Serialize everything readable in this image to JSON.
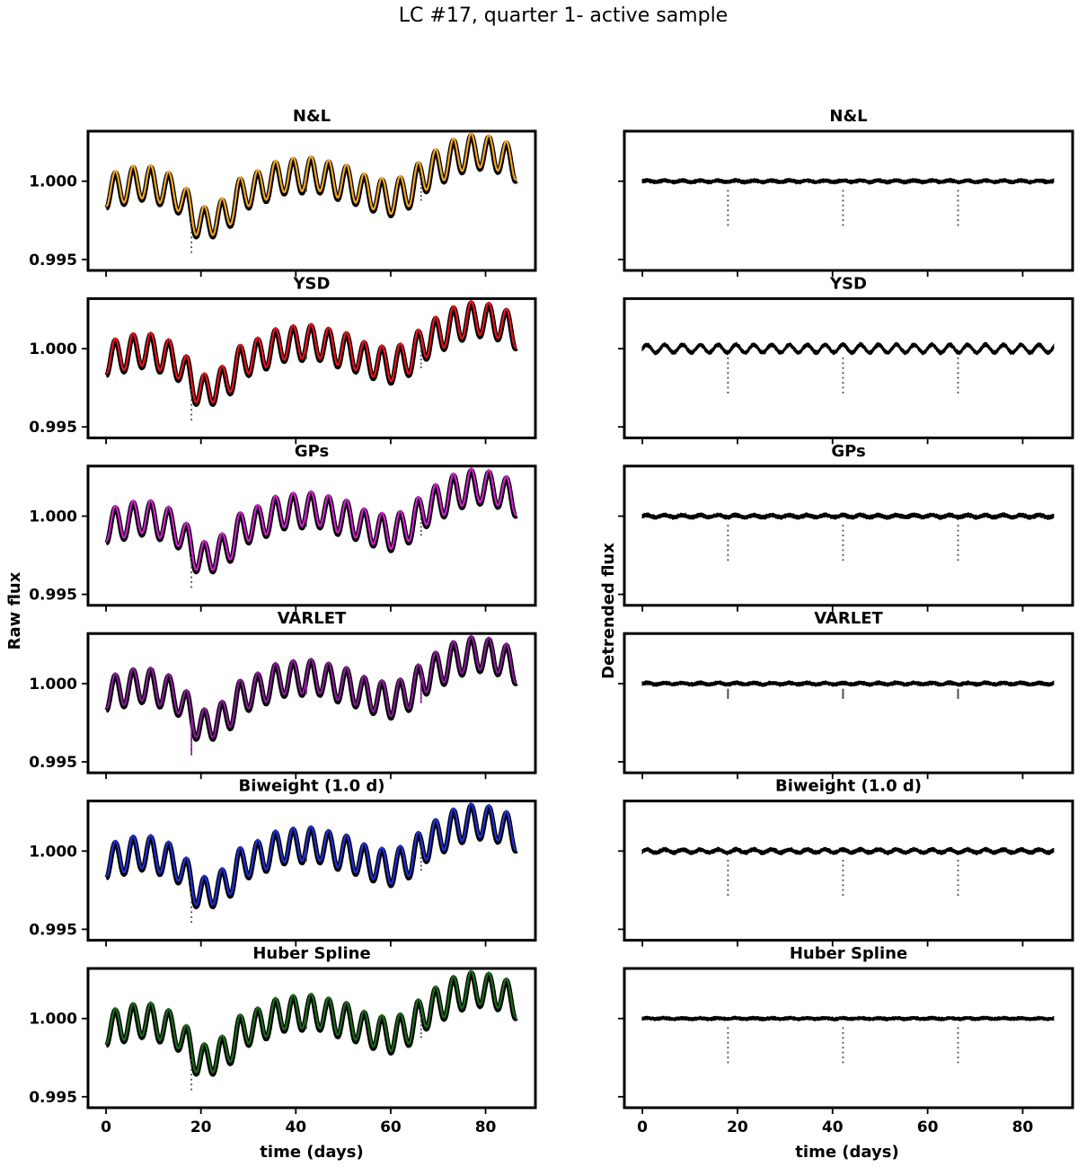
{
  "figure": {
    "suptitle": "LC #17, quarter 1- active sample",
    "left_ylabel": "Raw flux",
    "right_ylabel": "Detrended flux",
    "xlabel": "time (days)"
  },
  "chart_data": {
    "type": "line",
    "layout": "6 rows x 2 columns of panels",
    "x_ticks": [
      0,
      20,
      40,
      60,
      80
    ],
    "x_range_days": [
      0,
      86.5
    ],
    "ylim": [
      0.9943,
      1.0032
    ],
    "y_ticks": [
      1.0,
      0.995
    ],
    "y_tick_labels": [
      "1.000",
      "0.995"
    ],
    "transit_times": [
      18.0,
      42.2,
      66.4
    ],
    "raw_flux_model": {
      "oscillation_period_days": 3.75,
      "amplitude": 0.0011,
      "trend_anchor_days": [
        0,
        8,
        14,
        17,
        20,
        24,
        30,
        38,
        44,
        50,
        56,
        60,
        64,
        67,
        70,
        74,
        78,
        82,
        86.5
      ],
      "trend_anchor_flux": [
        0.9995,
        1.0,
        0.9995,
        0.9985,
        0.9973,
        0.9978,
        0.9995,
        1.0004,
        1.0005,
        1.0,
        0.9993,
        0.999,
        0.9995,
        1.0005,
        1.001,
        1.0017,
        1.002,
        1.0018,
        1.0012
      ],
      "transit_depths": [
        0.0025,
        0.001,
        0.002
      ]
    },
    "panels": [
      {
        "title": "N&L",
        "model_color": "#f5a623",
        "detrended": {
          "ripple": 5e-05,
          "noise": 0.00011,
          "dip_scale": 1.0
        }
      },
      {
        "title": "YSD",
        "model_color": "#e8121b",
        "detrended": {
          "ripple": 0.00025,
          "noise": 0.00012,
          "dip_scale": 1.0
        }
      },
      {
        "title": "GPs",
        "model_color": "#d11fd1",
        "detrended": {
          "ripple": 7e-05,
          "noise": 0.00012,
          "dip_scale": 1.0
        }
      },
      {
        "title": "VARLET",
        "model_color": "#8a1a9c",
        "detrended": {
          "ripple": 5e-05,
          "noise": 0.00011,
          "dip_scale": 0.25
        }
      },
      {
        "title": "Biweight (1.0 d)",
        "model_color": "#1f2fd6",
        "detrended": {
          "ripple": 0.0001,
          "noise": 0.00012,
          "dip_scale": 1.0
        }
      },
      {
        "title": "Huber Spline",
        "model_color": "#1a6b1a",
        "detrended": {
          "ripple": 3e-05,
          "noise": 0.0001,
          "dip_scale": 1.0
        }
      }
    ]
  }
}
